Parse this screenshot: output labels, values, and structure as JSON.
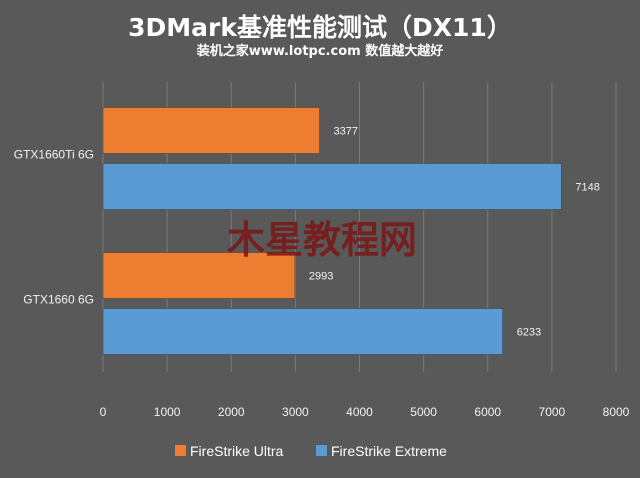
{
  "chart_data": {
    "type": "bar",
    "orientation": "horizontal",
    "title": "3DMark基准性能测试（DX11）",
    "subtitle": "装机之家www.lotpc.com 数值越大越好",
    "categories": [
      "GTX1660Ti 6G",
      "GTX1660 6G"
    ],
    "series": [
      {
        "name": "FireStrike Ultra",
        "color": "#ed7d31",
        "values": [
          3377,
          2993
        ]
      },
      {
        "name": "FireStrike Extreme",
        "color": "#5b9bd5",
        "values": [
          7148,
          6233
        ]
      }
    ],
    "xlim": [
      0,
      8000
    ],
    "xticks": [
      "0",
      "1000",
      "2000",
      "3000",
      "4000",
      "5000",
      "6000",
      "7000",
      "8000"
    ],
    "grid": true,
    "legend_position": "bottom",
    "watermark": "木星教程网"
  }
}
